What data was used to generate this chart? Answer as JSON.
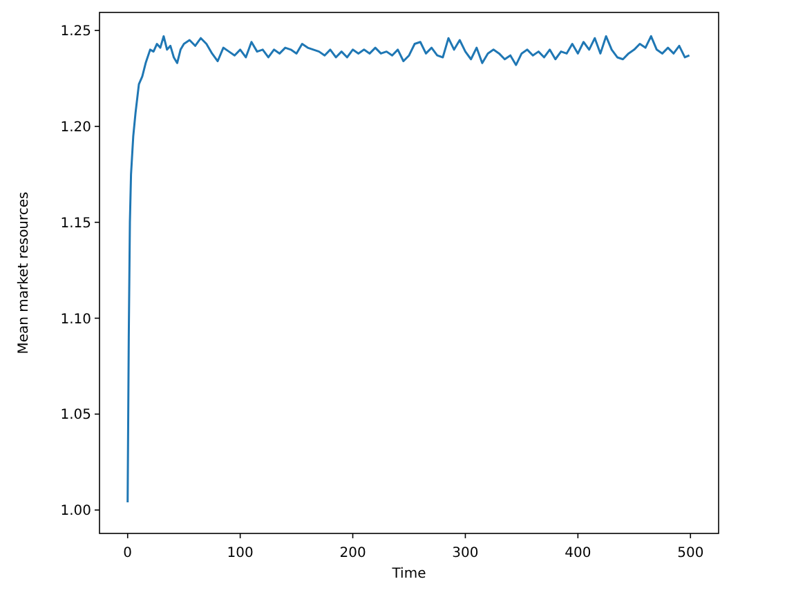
{
  "chart_data": {
    "type": "line",
    "xlabel": "Time",
    "ylabel": "Mean market resources",
    "xlim": [
      -25,
      525
    ],
    "ylim": [
      0.9878,
      1.2594
    ],
    "xticks": [
      0,
      100,
      200,
      300,
      400,
      500
    ],
    "yticks": [
      {
        "value": 1.0,
        "label": "1.00"
      },
      {
        "value": 1.05,
        "label": "1.05"
      },
      {
        "value": 1.1,
        "label": "1.10"
      },
      {
        "value": 1.15,
        "label": "1.15"
      },
      {
        "value": 1.2,
        "label": "1.20"
      },
      {
        "value": 1.25,
        "label": "1.25"
      }
    ],
    "grid": false,
    "series": [
      {
        "color": "#1f77b4",
        "x": [
          0,
          1,
          2,
          3,
          5,
          7,
          10,
          13,
          16,
          20,
          23,
          26,
          29,
          32,
          35,
          38,
          41,
          44,
          47,
          50,
          55,
          60,
          65,
          70,
          75,
          80,
          85,
          90,
          95,
          100,
          105,
          110,
          115,
          120,
          125,
          130,
          135,
          140,
          145,
          150,
          155,
          160,
          165,
          170,
          175,
          180,
          185,
          190,
          195,
          200,
          205,
          210,
          215,
          220,
          225,
          230,
          235,
          240,
          245,
          250,
          255,
          260,
          265,
          270,
          275,
          280,
          285,
          290,
          295,
          300,
          305,
          310,
          315,
          320,
          325,
          330,
          335,
          340,
          345,
          350,
          355,
          360,
          365,
          370,
          375,
          380,
          385,
          390,
          395,
          400,
          405,
          410,
          415,
          420,
          425,
          430,
          435,
          440,
          445,
          450,
          455,
          460,
          465,
          470,
          475,
          480,
          485,
          490,
          495,
          499
        ],
        "values": [
          1.004,
          1.09,
          1.15,
          1.175,
          1.195,
          1.207,
          1.222,
          1.226,
          1.233,
          1.24,
          1.239,
          1.243,
          1.241,
          1.247,
          1.24,
          1.242,
          1.236,
          1.233,
          1.24,
          1.243,
          1.245,
          1.242,
          1.246,
          1.243,
          1.238,
          1.234,
          1.241,
          1.239,
          1.237,
          1.24,
          1.236,
          1.244,
          1.239,
          1.24,
          1.236,
          1.24,
          1.238,
          1.241,
          1.24,
          1.238,
          1.243,
          1.241,
          1.24,
          1.239,
          1.237,
          1.24,
          1.236,
          1.239,
          1.236,
          1.24,
          1.238,
          1.24,
          1.238,
          1.241,
          1.238,
          1.239,
          1.237,
          1.24,
          1.234,
          1.237,
          1.243,
          1.244,
          1.238,
          1.241,
          1.237,
          1.236,
          1.246,
          1.24,
          1.245,
          1.239,
          1.235,
          1.241,
          1.233,
          1.238,
          1.24,
          1.238,
          1.235,
          1.237,
          1.232,
          1.238,
          1.24,
          1.237,
          1.239,
          1.236,
          1.24,
          1.235,
          1.239,
          1.238,
          1.243,
          1.238,
          1.244,
          1.24,
          1.246,
          1.238,
          1.247,
          1.24,
          1.236,
          1.235,
          1.238,
          1.24,
          1.243,
          1.241,
          1.247,
          1.24,
          1.238,
          1.241,
          1.238,
          1.242,
          1.236,
          1.237
        ]
      }
    ]
  }
}
